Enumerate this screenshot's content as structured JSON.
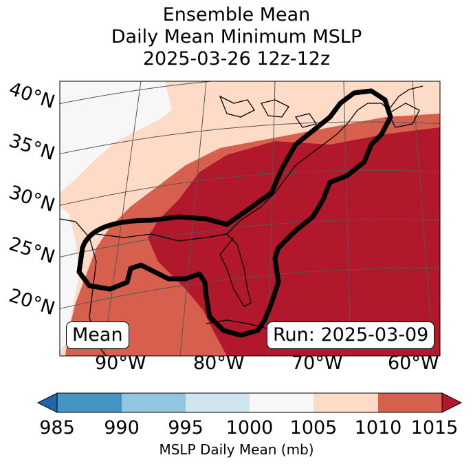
{
  "title": {
    "line1": "Ensemble Mean",
    "line2": "Daily Mean Minimum MSLP",
    "line3": "2025-03-26 12z-12z"
  },
  "map": {
    "lat_labels": [
      "40°N",
      "35°N",
      "30°N",
      "25°N",
      "20°N"
    ],
    "lon_labels": [
      "90°W",
      "80°W",
      "70°W",
      "60°W"
    ],
    "stat_label": "Mean",
    "run_label": "Run: 2025-03-09"
  },
  "colorbar": {
    "ticks": [
      "985",
      "990",
      "995",
      "1000",
      "1005",
      "1010",
      "1015"
    ],
    "label": "MSLP Daily Mean (mb)",
    "bins": [
      {
        "range": "<985",
        "color": "#2166ac"
      },
      {
        "range": "985-990",
        "color": "#4393c3"
      },
      {
        "range": "990-995",
        "color": "#92c5de"
      },
      {
        "range": "995-1000",
        "color": "#d1e5f0"
      },
      {
        "range": "1000-1005",
        "color": "#f7f7f7"
      },
      {
        "range": "1005-1010",
        "color": "#fddbc7"
      },
      {
        "range": "1010-1015",
        "color": "#d6604d"
      },
      {
        "range": ">1015",
        "color": "#b2182b"
      }
    ]
  },
  "chart_data": {
    "type": "heatmap",
    "title": "Ensemble Mean Daily Mean Minimum MSLP 2025-03-26 12z-12z",
    "units": "mb",
    "levels": [
      985,
      990,
      995,
      1000,
      1005,
      1010,
      1015
    ],
    "regions": [
      {
        "name": "northwest-interior",
        "value_range": "1000-1005"
      },
      {
        "name": "southeast-coast-and-atlantic",
        "value_range": ">1015"
      },
      {
        "name": "gulf-and-transition",
        "value_range": "1010-1015"
      }
    ],
    "contour_note": "thick black outline around Gulf coast and US East Coast"
  }
}
